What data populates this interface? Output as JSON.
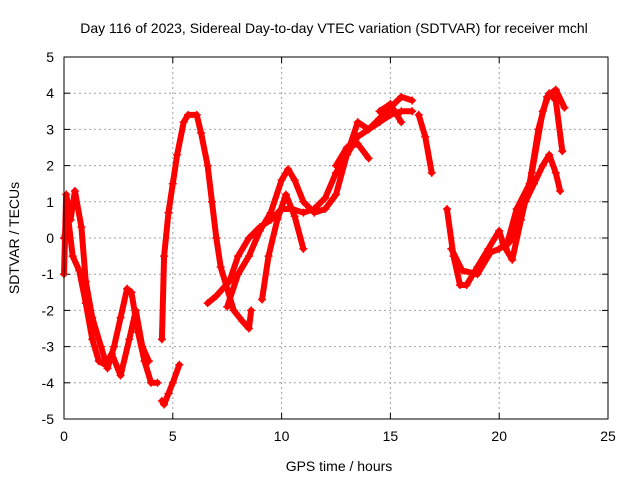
{
  "chart_data": {
    "type": "scatter",
    "title": "Day 116 of 2023, Sidereal Day-to-day VTEC variation (SDTVAR) for receiver mchl",
    "xlabel": "GPS time / hours",
    "ylabel": "SDTVAR / TECUs",
    "xlim": [
      0,
      25
    ],
    "ylim": [
      -5,
      5
    ],
    "xticks": [
      "0",
      "5",
      "10",
      "15",
      "20",
      "25"
    ],
    "yticks": [
      "-5",
      "-4",
      "-3",
      "-2",
      "-1",
      "0",
      "1",
      "2",
      "3",
      "4",
      "5"
    ],
    "grid": true,
    "marker": "plus",
    "color": "#ff0000",
    "series": [
      {
        "x": [
          0,
          0.1,
          0.3,
          0.5,
          0.8,
          1.0,
          1.3,
          1.7,
          2.0,
          2.3,
          2.6,
          2.9,
          3.1,
          3.4,
          3.7,
          4.0,
          4.3
        ],
        "y": [
          -1,
          1.2,
          0.5,
          1.3,
          0.3,
          -1.2,
          -2.2,
          -3.0,
          -3.6,
          -3.0,
          -2.2,
          -1.4,
          -1.5,
          -2.6,
          -3.4,
          -4.0,
          -4.0
        ]
      },
      {
        "x": [
          0,
          0.2,
          0.4,
          0.7,
          1.0,
          1.3,
          1.6,
          1.9,
          2.2,
          2.6,
          3.0,
          3.3,
          3.6,
          3.9
        ],
        "y": [
          0,
          0.5,
          -0.5,
          -0.9,
          -1.8,
          -2.8,
          -3.4,
          -3.5,
          -3.2,
          -3.8,
          -2.8,
          -2.0,
          -3.0,
          -3.4
        ]
      },
      {
        "x": [
          4.5,
          4.6,
          4.8,
          5.0,
          5.3
        ],
        "y": [
          -4.5,
          -4.6,
          -4.3,
          -4.0,
          -3.5
        ]
      },
      {
        "x": [
          4.5,
          4.6,
          4.8,
          5.0,
          5.2,
          5.5,
          5.7,
          6.1,
          6.3,
          6.6,
          6.8,
          7.0,
          7.2,
          7.5,
          7.8,
          8.2,
          8.5,
          8.6
        ],
        "y": [
          -2.8,
          -0.5,
          0.7,
          1.5,
          2.3,
          3.2,
          3.4,
          3.4,
          2.9,
          2.0,
          1.0,
          0,
          -0.8,
          -1.4,
          -2.0,
          -2.3,
          -2.5,
          -2.0
        ]
      },
      {
        "x": [
          6.6,
          7.0,
          7.6,
          8.0,
          8.5,
          9.0,
          9.5,
          10.0,
          10.5,
          11.0,
          11.5,
          12.0,
          12.5,
          13.0,
          13.5,
          14.0,
          14.5,
          15.0,
          15.5,
          16.0
        ],
        "y": [
          -1.8,
          -1.6,
          -1.2,
          -0.5,
          0,
          0.3,
          0.5,
          0.8,
          0.8,
          0.7,
          0.8,
          1.1,
          1.8,
          2.3,
          2.8,
          3.0,
          3.2,
          3.4,
          3.5,
          3.5
        ]
      },
      {
        "x": [
          7.5,
          8.0,
          8.5,
          9.0,
          9.5,
          10.0,
          10.3,
          10.6,
          11.0,
          11.5,
          12.0,
          12.5,
          13.0,
          13.5,
          14.0,
          14.5,
          15.0,
          15.5,
          16.0
        ],
        "y": [
          -1.9,
          -1.0,
          -0.5,
          0.2,
          0.7,
          1.6,
          1.9,
          1.6,
          1.0,
          0.7,
          0.8,
          1.2,
          2.3,
          3.2,
          3.0,
          3.3,
          3.6,
          3.9,
          3.8
        ]
      },
      {
        "x": [
          9.1,
          9.4,
          9.8,
          10.2,
          10.6,
          11.0
        ],
        "y": [
          -1.7,
          -0.5,
          0.5,
          1.2,
          0.6,
          -0.3
        ]
      },
      {
        "x": [
          12.5,
          13.0,
          13.5,
          14.0
        ],
        "y": [
          2.0,
          2.5,
          2.6,
          2.2
        ]
      },
      {
        "x": [
          14.5,
          15.0,
          15.5
        ],
        "y": [
          3.5,
          3.7,
          3.2
        ]
      },
      {
        "x": [
          16.3,
          16.6,
          16.9
        ],
        "y": [
          3.4,
          2.8,
          1.8
        ]
      },
      {
        "x": [
          17.6,
          17.9,
          18.2,
          18.5,
          19.0,
          19.5,
          20.0,
          20.2,
          20.6,
          21.0,
          21.5,
          22.0,
          22.3,
          22.6,
          22.9
        ],
        "y": [
          0.8,
          -0.5,
          -1.3,
          -1.3,
          -0.8,
          -0.3,
          0.2,
          -0.2,
          -0.6,
          0.5,
          1.8,
          3.5,
          4.0,
          3.8,
          2.4
        ]
      },
      {
        "x": [
          17.8,
          18.3,
          19.0,
          19.6,
          20.0,
          20.5,
          20.8,
          21.2,
          21.6,
          22.0,
          22.3,
          22.6,
          22.8
        ],
        "y": [
          -0.3,
          -0.9,
          -1.0,
          -0.4,
          -0.3,
          -0.1,
          0.5,
          1.0,
          1.5,
          2.0,
          2.3,
          1.8,
          1.3
        ]
      },
      {
        "x": [
          20.3,
          20.8,
          21.4,
          21.8,
          22.2,
          22.6,
          23.0
        ],
        "y": [
          -0.3,
          0.8,
          1.5,
          3.0,
          3.9,
          4.1,
          3.6
        ]
      }
    ]
  }
}
